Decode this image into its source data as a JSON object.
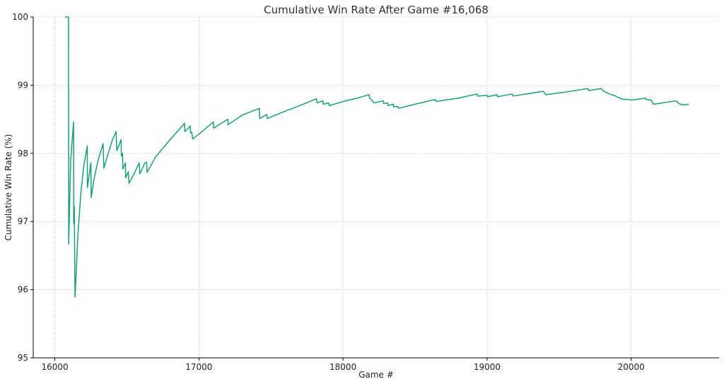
{
  "chart_data": {
    "type": "line",
    "title": "Cumulative Win Rate After Game #16,068",
    "xlabel": "Game #",
    "ylabel": "Cumulative Win Rate (%)",
    "xlim": [
      15850,
      20610
    ],
    "ylim": [
      95,
      100
    ],
    "x_ticks": [
      16000,
      17000,
      18000,
      19000,
      20000
    ],
    "y_ticks": [
      95,
      96,
      97,
      98,
      99,
      100
    ],
    "grid": true,
    "line_color": "#18a07a",
    "series": [
      {
        "name": "",
        "points": [
          [
            16070,
            100
          ],
          [
            16095,
            100
          ],
          [
            16096,
            96.67
          ],
          [
            16110,
            97.9
          ],
          [
            16130,
            98.46
          ],
          [
            16131,
            96.97
          ],
          [
            16135,
            97.22
          ],
          [
            16140,
            95.89
          ],
          [
            16160,
            96.8
          ],
          [
            16180,
            97.4
          ],
          [
            16200,
            97.8
          ],
          [
            16225,
            98.11
          ],
          [
            16226,
            97.5
          ],
          [
            16240,
            97.7
          ],
          [
            16250,
            97.86
          ],
          [
            16252,
            97.35
          ],
          [
            16270,
            97.6
          ],
          [
            16300,
            97.9
          ],
          [
            16335,
            98.14
          ],
          [
            16340,
            97.78
          ],
          [
            16370,
            98.0
          ],
          [
            16400,
            98.2
          ],
          [
            16425,
            98.32
          ],
          [
            16430,
            98.04
          ],
          [
            16460,
            98.2
          ],
          [
            16462,
            97.96
          ],
          [
            16470,
            98.0
          ],
          [
            16472,
            97.77
          ],
          [
            16490,
            97.86
          ],
          [
            16492,
            97.64
          ],
          [
            16510,
            97.73
          ],
          [
            16515,
            97.56
          ],
          [
            16550,
            97.7
          ],
          [
            16585,
            97.86
          ],
          [
            16590,
            97.7
          ],
          [
            16625,
            97.86
          ],
          [
            16637,
            97.87
          ],
          [
            16640,
            97.72
          ],
          [
            16700,
            97.95
          ],
          [
            16800,
            98.2
          ],
          [
            16900,
            98.44
          ],
          [
            16902,
            98.32
          ],
          [
            16940,
            98.4
          ],
          [
            16942,
            98.3
          ],
          [
            16950,
            98.31
          ],
          [
            16957,
            98.21
          ],
          [
            17000,
            98.28
          ],
          [
            17100,
            98.46
          ],
          [
            17102,
            98.37
          ],
          [
            17200,
            98.5
          ],
          [
            17202,
            98.42
          ],
          [
            17300,
            98.56
          ],
          [
            17420,
            98.66
          ],
          [
            17422,
            98.51
          ],
          [
            17470,
            98.57
          ],
          [
            17475,
            98.51
          ],
          [
            17600,
            98.62
          ],
          [
            17700,
            98.7
          ],
          [
            17815,
            98.8
          ],
          [
            17820,
            98.74
          ],
          [
            17860,
            98.77
          ],
          [
            17863,
            98.72
          ],
          [
            17900,
            98.74
          ],
          [
            17905,
            98.7
          ],
          [
            18000,
            98.76
          ],
          [
            18100,
            98.81
          ],
          [
            18180,
            98.86
          ],
          [
            18185,
            98.81
          ],
          [
            18200,
            98.78
          ],
          [
            18215,
            98.74
          ],
          [
            18280,
            98.77
          ],
          [
            18282,
            98.73
          ],
          [
            18310,
            98.74
          ],
          [
            18312,
            98.7
          ],
          [
            18350,
            98.72
          ],
          [
            18352,
            98.68
          ],
          [
            18380,
            98.69
          ],
          [
            18385,
            98.66
          ],
          [
            18500,
            98.72
          ],
          [
            18640,
            98.79
          ],
          [
            18645,
            98.76
          ],
          [
            18800,
            98.81
          ],
          [
            18930,
            98.87
          ],
          [
            18935,
            98.84
          ],
          [
            19000,
            98.85
          ],
          [
            19002,
            98.83
          ],
          [
            19070,
            98.86
          ],
          [
            19072,
            98.83
          ],
          [
            19175,
            98.87
          ],
          [
            19180,
            98.84
          ],
          [
            19300,
            98.88
          ],
          [
            19390,
            98.91
          ],
          [
            19400,
            98.88
          ],
          [
            19410,
            98.86
          ],
          [
            19550,
            98.9
          ],
          [
            19700,
            98.95
          ],
          [
            19705,
            98.92
          ],
          [
            19790,
            98.95
          ],
          [
            19800,
            98.93
          ],
          [
            19810,
            98.91
          ],
          [
            19830,
            98.89
          ],
          [
            19850,
            98.87
          ],
          [
            19880,
            98.85
          ],
          [
            19900,
            98.83
          ],
          [
            19920,
            98.81
          ],
          [
            19950,
            98.79
          ],
          [
            19990,
            98.79
          ],
          [
            20000,
            98.78
          ],
          [
            20100,
            98.81
          ],
          [
            20103,
            98.79
          ],
          [
            20140,
            98.78
          ],
          [
            20155,
            98.72
          ],
          [
            20310,
            98.77
          ],
          [
            20320,
            98.75
          ],
          [
            20340,
            98.72
          ],
          [
            20360,
            98.71
          ],
          [
            20400,
            98.72
          ]
        ]
      }
    ]
  }
}
